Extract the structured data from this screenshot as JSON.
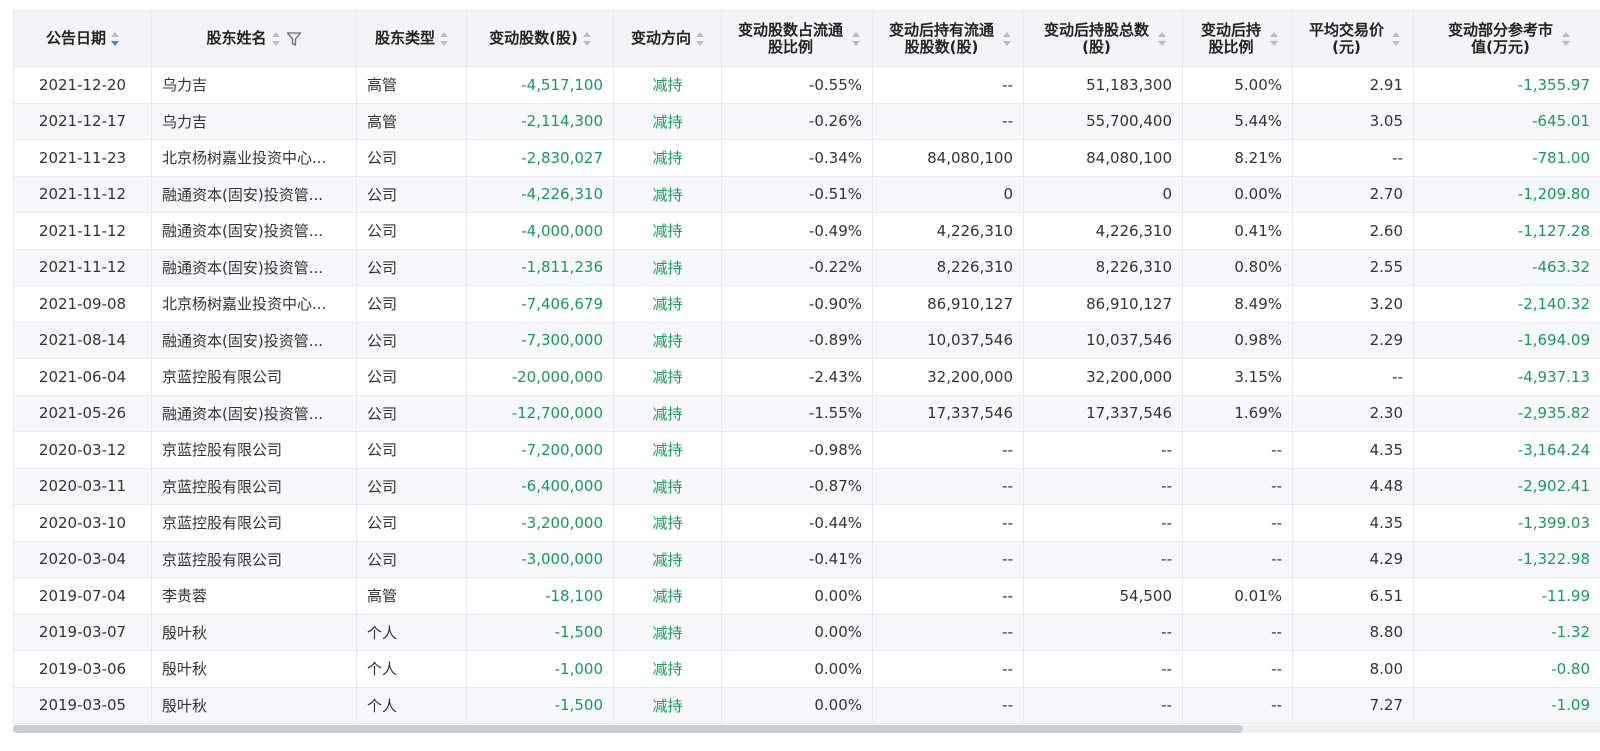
{
  "columns": [
    {
      "label": "公告日期",
      "sort": "desc"
    },
    {
      "label": "股东姓名",
      "sort": "none",
      "filter": true
    },
    {
      "label": "股东类型",
      "sort": "none"
    },
    {
      "label": "变动股数(股)",
      "sort": "none"
    },
    {
      "label": "变动方向",
      "sort": "none"
    },
    {
      "label": "变动股数占流通股比例",
      "sort": "none"
    },
    {
      "label": "变动后持有流通股股数(股)",
      "sort": "none"
    },
    {
      "label": "变动后持股总数(股)",
      "sort": "none"
    },
    {
      "label": "变动后持股比例",
      "sort": "none"
    },
    {
      "label": "平均交易价(元)",
      "sort": "none"
    },
    {
      "label": "变动部分参考市值(万元)",
      "sort": "none"
    }
  ],
  "rows": [
    [
      "2021-12-20",
      "乌力吉",
      "高管",
      "-4,517,100",
      "减持",
      "-0.55%",
      "--",
      "51,183,300",
      "5.00%",
      "2.91",
      "-1,355.97"
    ],
    [
      "2021-12-17",
      "乌力吉",
      "高管",
      "-2,114,300",
      "减持",
      "-0.26%",
      "--",
      "55,700,400",
      "5.44%",
      "3.05",
      "-645.01"
    ],
    [
      "2021-11-23",
      "北京杨树嘉业投资中心...",
      "公司",
      "-2,830,027",
      "减持",
      "-0.34%",
      "84,080,100",
      "84,080,100",
      "8.21%",
      "--",
      "-781.00"
    ],
    [
      "2021-11-12",
      "融通资本(固安)投资管...",
      "公司",
      "-4,226,310",
      "减持",
      "-0.51%",
      "0",
      "0",
      "0.00%",
      "2.70",
      "-1,209.80"
    ],
    [
      "2021-11-12",
      "融通资本(固安)投资管...",
      "公司",
      "-4,000,000",
      "减持",
      "-0.49%",
      "4,226,310",
      "4,226,310",
      "0.41%",
      "2.60",
      "-1,127.28"
    ],
    [
      "2021-11-12",
      "融通资本(固安)投资管...",
      "公司",
      "-1,811,236",
      "减持",
      "-0.22%",
      "8,226,310",
      "8,226,310",
      "0.80%",
      "2.55",
      "-463.32"
    ],
    [
      "2021-09-08",
      "北京杨树嘉业投资中心...",
      "公司",
      "-7,406,679",
      "减持",
      "-0.90%",
      "86,910,127",
      "86,910,127",
      "8.49%",
      "3.20",
      "-2,140.32"
    ],
    [
      "2021-08-14",
      "融通资本(固安)投资管...",
      "公司",
      "-7,300,000",
      "减持",
      "-0.89%",
      "10,037,546",
      "10,037,546",
      "0.98%",
      "2.29",
      "-1,694.09"
    ],
    [
      "2021-06-04",
      "京蓝控股有限公司",
      "公司",
      "-20,000,000",
      "减持",
      "-2.43%",
      "32,200,000",
      "32,200,000",
      "3.15%",
      "--",
      "-4,937.13"
    ],
    [
      "2021-05-26",
      "融通资本(固安)投资管...",
      "公司",
      "-12,700,000",
      "减持",
      "-1.55%",
      "17,337,546",
      "17,337,546",
      "1.69%",
      "2.30",
      "-2,935.82"
    ],
    [
      "2020-03-12",
      "京蓝控股有限公司",
      "公司",
      "-7,200,000",
      "减持",
      "-0.98%",
      "--",
      "--",
      "--",
      "4.35",
      "-3,164.24"
    ],
    [
      "2020-03-11",
      "京蓝控股有限公司",
      "公司",
      "-6,400,000",
      "减持",
      "-0.87%",
      "--",
      "--",
      "--",
      "4.48",
      "-2,902.41"
    ],
    [
      "2020-03-10",
      "京蓝控股有限公司",
      "公司",
      "-3,200,000",
      "减持",
      "-0.44%",
      "--",
      "--",
      "--",
      "4.35",
      "-1,399.03"
    ],
    [
      "2020-03-04",
      "京蓝控股有限公司",
      "公司",
      "-3,000,000",
      "减持",
      "-0.41%",
      "--",
      "--",
      "--",
      "4.29",
      "-1,322.98"
    ],
    [
      "2019-07-04",
      "李贵蓉",
      "高管",
      "-18,100",
      "减持",
      "0.00%",
      "--",
      "54,500",
      "0.01%",
      "6.51",
      "-11.99"
    ],
    [
      "2019-03-07",
      "殷叶秋",
      "个人",
      "-1,500",
      "减持",
      "0.00%",
      "--",
      "--",
      "--",
      "8.80",
      "-1.32"
    ],
    [
      "2019-03-06",
      "殷叶秋",
      "个人",
      "-1,000",
      "减持",
      "0.00%",
      "--",
      "--",
      "--",
      "8.00",
      "-0.80"
    ],
    [
      "2019-03-05",
      "殷叶秋",
      "个人",
      "-1,500",
      "减持",
      "0.00%",
      "--",
      "--",
      "--",
      "7.27",
      "-1.09"
    ]
  ],
  "colors": {
    "negative": "#1a9a5a",
    "header_bg": "#f2f4f8",
    "sort_active": "#4a7cf6"
  },
  "icons": {
    "sort": "sort-caret-icon",
    "filter": "funnel-filter-icon"
  }
}
